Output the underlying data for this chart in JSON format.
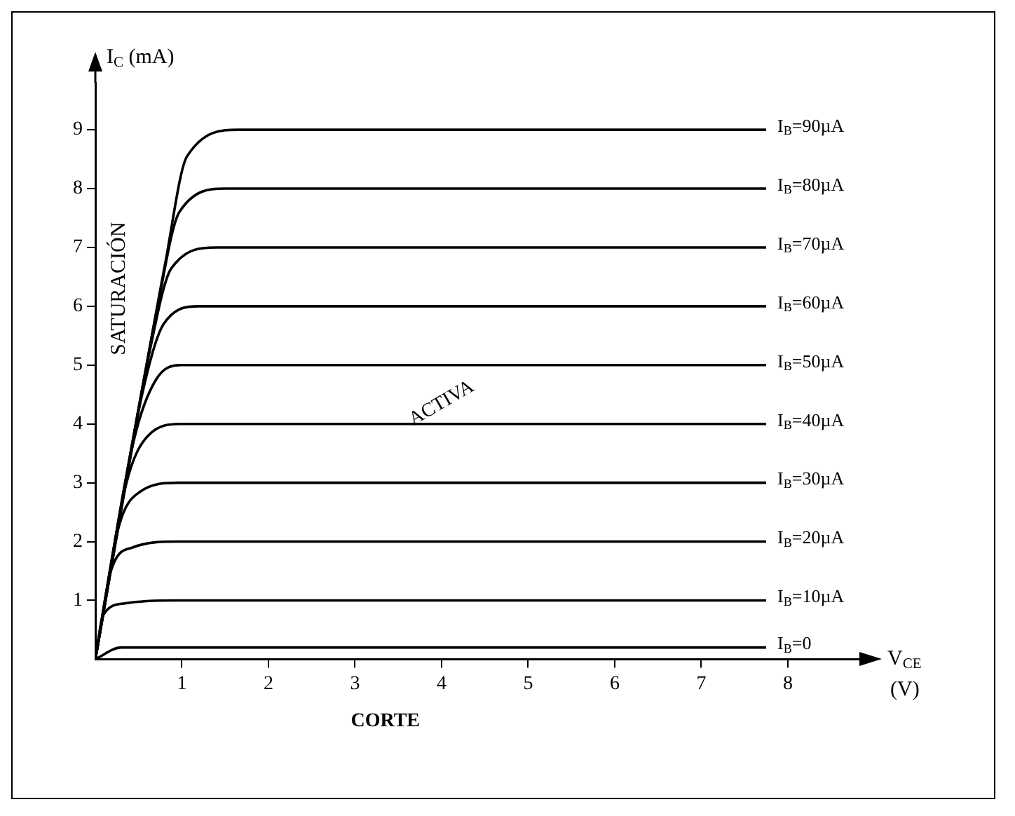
{
  "chart_data": {
    "type": "line",
    "xlabel": "V$_{CE}$ (V)",
    "ylabel": "I$_{C}$ (mA)",
    "xlim": [
      0,
      8.6
    ],
    "xticks": [
      1,
      2,
      3,
      4,
      5,
      6,
      7,
      8
    ],
    "ylim": [
      0,
      9.8
    ],
    "yticks": [
      1,
      2,
      3,
      4,
      5,
      6,
      7,
      8,
      9
    ],
    "grid": false,
    "legend": false,
    "marker": "none",
    "line_style": "solid",
    "annotations": [
      "SATURACIÓN",
      "ACTIVA",
      "CORTE"
    ],
    "series": [
      {
        "name": "I$_{B}$=90µA",
        "color": "#000000",
        "x": [
          0,
          0.81,
          1.06,
          1.65,
          7.75
        ],
        "values": [
          0,
          6.75,
          8.55,
          9,
          9
        ]
      },
      {
        "name": "I$_{B}$=80µA",
        "color": "#000000",
        "x": [
          0,
          0.72,
          0.97,
          1.5,
          7.75
        ],
        "values": [
          0,
          6,
          7.6,
          8,
          8
        ]
      },
      {
        "name": "I$_{B}$=70µA",
        "color": "#000000",
        "x": [
          0,
          0.63,
          0.88,
          1.4,
          7.75
        ],
        "values": [
          0,
          5.25,
          6.65,
          7,
          7
        ]
      },
      {
        "name": "I$_{B}$=60µA",
        "color": "#000000",
        "x": [
          0,
          0.54,
          0.79,
          1.2,
          7.75
        ],
        "values": [
          0,
          4.5,
          5.7,
          6,
          6
        ]
      },
      {
        "name": "I$_{B}$=50µA",
        "color": "#000000",
        "x": [
          0,
          0.45,
          0.7,
          1.0,
          7.75
        ],
        "values": [
          0,
          3.75,
          4.75,
          5,
          5
        ]
      },
      {
        "name": "I$_{B}$=40µA",
        "color": "#000000",
        "x": [
          0,
          0.36,
          0.61,
          1.0,
          7.75
        ],
        "values": [
          0,
          3,
          3.8,
          4,
          4
        ]
      },
      {
        "name": "I$_{B}$=30µA",
        "color": "#000000",
        "x": [
          0,
          0.27,
          0.52,
          0.95,
          7.75
        ],
        "values": [
          0,
          2.25,
          2.85,
          3,
          3
        ]
      },
      {
        "name": "I$_{B}$=20µA",
        "color": "#000000",
        "x": [
          0,
          0.18,
          0.43,
          0.95,
          7.75
        ],
        "values": [
          0,
          1.5,
          1.9,
          2,
          2
        ]
      },
      {
        "name": "I$_{B}$=10µA",
        "color": "#000000",
        "x": [
          0,
          0.09,
          0.34,
          0.9,
          7.75
        ],
        "values": [
          0,
          0.75,
          0.95,
          1,
          1
        ]
      },
      {
        "name": "I$_{B}$=0",
        "color": "#000000",
        "x": [
          0,
          0.3,
          7.75
        ],
        "values": [
          0,
          0.2,
          0.2
        ]
      }
    ]
  }
}
